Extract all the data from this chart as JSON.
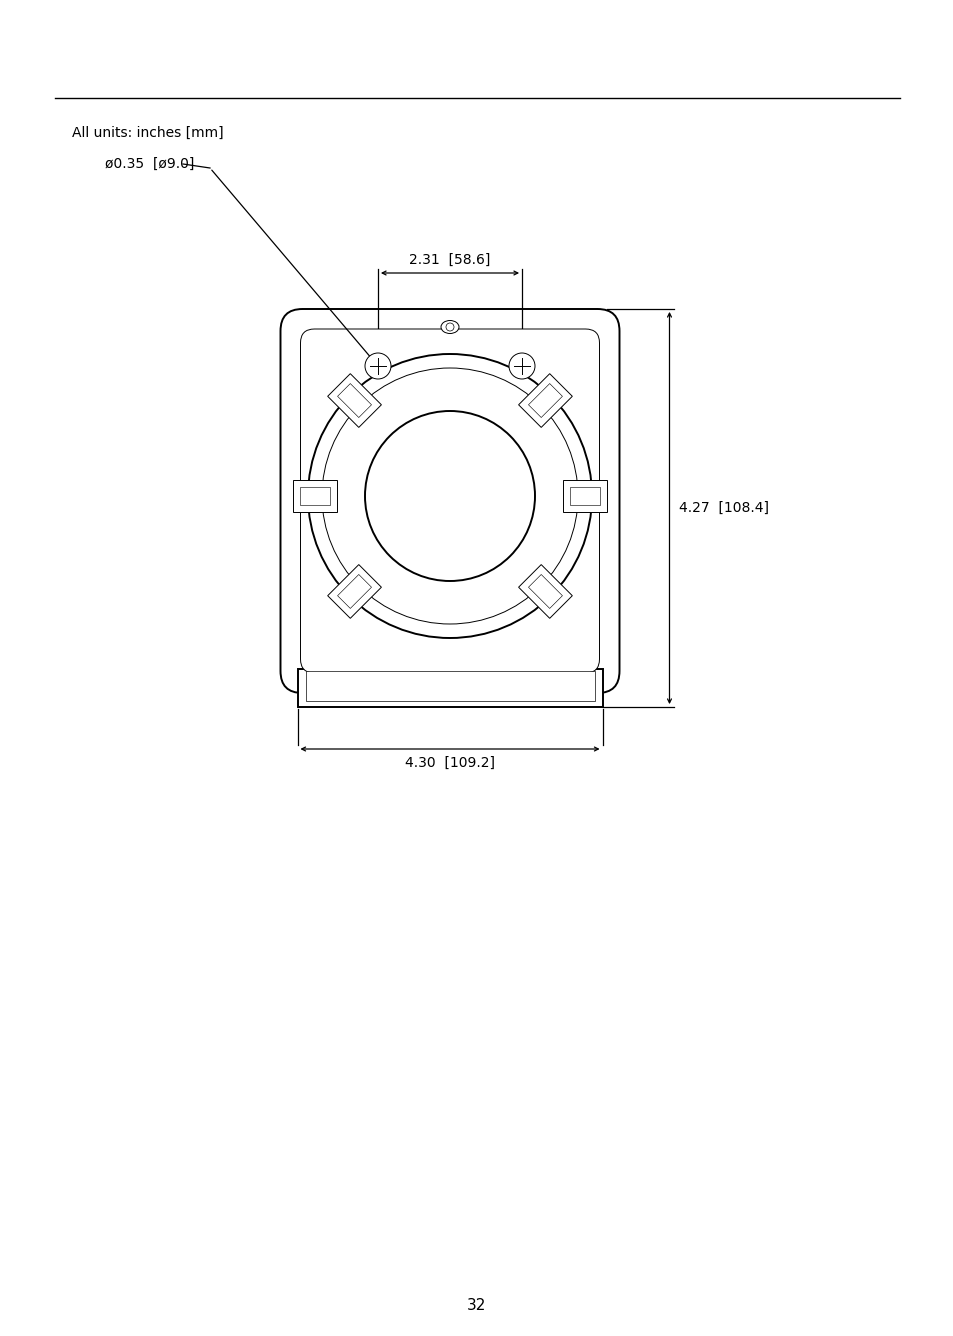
{
  "bg_color": "#ffffff",
  "line_color": "#000000",
  "page_number": "32",
  "units_label": "All units: inches [mm]",
  "dim_hole": "ø0.35  [ø9.0]",
  "dim_231": "2.31  [58.6]",
  "dim_427": "4.27  [108.4]",
  "dim_430": "4.30  [109.2]",
  "figsize": [
    9.54,
    13.36
  ],
  "dpi": 100
}
